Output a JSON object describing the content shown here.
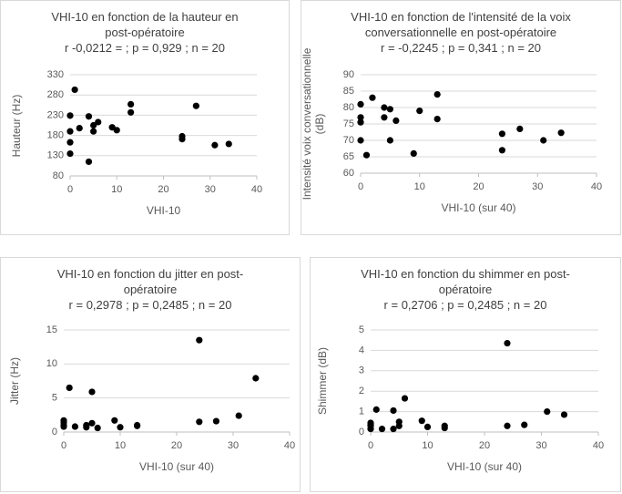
{
  "chart_data": [
    {
      "type": "scatter",
      "title": "VHI-10 en fonction de la hauteur en post-opératoire",
      "subtitle": "r -0,0212 = ; p = 0,929 ; n = 20",
      "xlabel": "VHI-10",
      "ylabel": "Hauteur (Hz)",
      "color": "#000000",
      "grid": true,
      "x": [
        0,
        0,
        0,
        0,
        1,
        2,
        4,
        4,
        5,
        5,
        6,
        9,
        10,
        13,
        13,
        24,
        24,
        27,
        31,
        34
      ],
      "values": [
        229,
        190,
        163,
        135,
        293,
        198,
        227,
        115,
        205,
        190,
        213,
        200,
        193,
        257,
        237,
        178,
        171,
        253,
        156,
        159
      ],
      "xlim": [
        0,
        40
      ],
      "xticks": [
        0,
        10,
        20,
        30,
        40
      ],
      "ylim": [
        80,
        330
      ],
      "yticks": [
        80,
        130,
        180,
        230,
        280,
        330
      ]
    },
    {
      "type": "scatter",
      "title": "VHI-10 en fonction de l'intensité de la voix conversationnelle en post-opératoire",
      "subtitle": "r = -0,2245 ; p = 0,341 ; n = 20",
      "xlabel": "VHI-10 (sur 40)",
      "ylabel": "Intensité voix conversationnelle (dB)",
      "color": "#000000",
      "grid": true,
      "x": [
        0,
        0,
        0,
        0,
        1,
        2,
        4,
        4,
        5,
        5,
        6,
        9,
        10,
        13,
        13,
        24,
        24,
        27,
        31,
        34
      ],
      "values": [
        81,
        77,
        75.5,
        70,
        65.5,
        83,
        80,
        77,
        79.5,
        70,
        76,
        66,
        79,
        84,
        76.5,
        72,
        67,
        73.5,
        70,
        72.3
      ],
      "xlim": [
        0,
        40
      ],
      "xticks": [
        0,
        10,
        20,
        30,
        40
      ],
      "ylim": [
        60,
        90
      ],
      "yticks": [
        60,
        65,
        70,
        75,
        80,
        85,
        90
      ]
    },
    {
      "type": "scatter",
      "title": "VHI-10 en fonction du jitter en post-opératoire",
      "subtitle": "r = 0,2978 ; p = 0,2485 ; n = 20",
      "xlabel": "VHI-10 (sur 40)",
      "ylabel": "Jitter (Hz)",
      "color": "#000000",
      "grid": true,
      "x": [
        0,
        0,
        0,
        0,
        1,
        2,
        4,
        4,
        5,
        5,
        6,
        9,
        10,
        13,
        13,
        24,
        24,
        27,
        31,
        34
      ],
      "values": [
        1.7,
        1.4,
        1.0,
        0.8,
        6.5,
        0.8,
        1.0,
        0.7,
        5.9,
        1.3,
        0.6,
        1.7,
        0.7,
        1.0,
        0.9,
        13.5,
        1.5,
        1.6,
        2.4,
        7.9
      ],
      "xlim": [
        0,
        40
      ],
      "xticks": [
        0,
        10,
        20,
        30,
        40
      ],
      "ylim": [
        0,
        15
      ],
      "yticks": [
        0,
        5,
        10,
        15
      ]
    },
    {
      "type": "scatter",
      "title": "VHI-10 en fonction du shimmer en post-opératoire",
      "subtitle": "r = 0,2706 ; p = 0,2485 ; n = 20",
      "xlabel": "VHI-10 (sur 40)",
      "ylabel": "Shimmer (dB)",
      "color": "#000000",
      "grid": true,
      "x": [
        0,
        0,
        0,
        0,
        1,
        2,
        4,
        4,
        5,
        5,
        6,
        9,
        10,
        13,
        13,
        24,
        24,
        27,
        31,
        34
      ],
      "values": [
        0.45,
        0.35,
        0.3,
        0.15,
        1.1,
        0.15,
        1.05,
        0.15,
        0.5,
        0.3,
        1.65,
        0.55,
        0.25,
        0.3,
        0.2,
        4.35,
        0.3,
        0.35,
        1.0,
        0.85
      ],
      "xlim": [
        0,
        40
      ],
      "xticks": [
        0,
        10,
        20,
        30,
        40
      ],
      "ylim": [
        0,
        5
      ],
      "yticks": [
        0,
        1,
        2,
        3,
        4,
        5
      ]
    }
  ]
}
